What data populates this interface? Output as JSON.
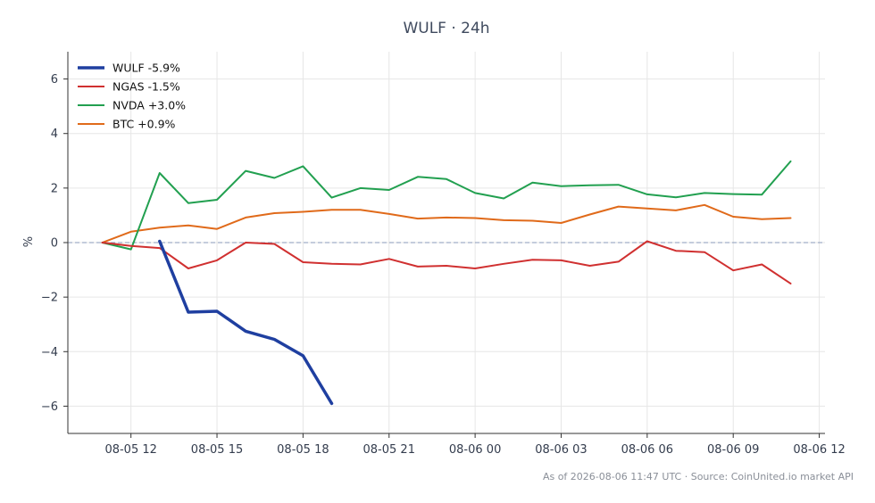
{
  "chart_data": {
    "type": "line",
    "title": "WULF · 24h",
    "xlabel": "",
    "ylabel": "%",
    "x_ticks": [
      "08-05 12",
      "08-05 15",
      "08-05 18",
      "08-05 21",
      "08-06 00",
      "08-06 03",
      "08-06 06",
      "08-06 09",
      "08-06 12"
    ],
    "x_range_hours": [
      -2.2,
      24.2
    ],
    "ylim": [
      -7,
      7
    ],
    "y_ticks": [
      -6,
      -4,
      -2,
      0,
      2,
      4,
      6
    ],
    "y_tick_labels": [
      "−6",
      "−4",
      "−2",
      "0",
      "2",
      "4",
      "6"
    ],
    "grid": true,
    "legend_position": "top-left",
    "zero_line": true,
    "series": [
      {
        "name": "WULF -5.9%",
        "color": "#1f3fa0",
        "width": 3.5,
        "x": [
          1,
          2,
          3,
          4,
          5,
          6,
          7
        ],
        "values": [
          0.05,
          -2.55,
          -2.52,
          -3.25,
          -3.55,
          -4.15,
          -5.9
        ]
      },
      {
        "name": "NGAS -1.5%",
        "color": "#d03030",
        "width": 2,
        "x": [
          -1,
          0,
          1,
          2,
          3,
          4,
          5,
          6,
          7,
          8,
          9,
          10,
          11,
          12,
          13,
          14,
          15,
          16,
          17,
          18,
          19,
          20,
          21,
          22,
          23
        ],
        "values": [
          0,
          -0.12,
          -0.2,
          -0.95,
          -0.65,
          0,
          -0.05,
          -0.72,
          -0.78,
          -0.8,
          -0.6,
          -0.88,
          -0.85,
          -0.95,
          -0.78,
          -0.63,
          -0.65,
          -0.85,
          -0.7,
          0.05,
          -0.3,
          -0.35,
          -1.02,
          -0.8,
          -1.5
        ]
      },
      {
        "name": "NVDA +3.0%",
        "color": "#22a050",
        "width": 2,
        "x": [
          -1,
          0,
          1,
          2,
          3,
          4,
          5,
          6,
          7,
          8,
          9,
          10,
          11,
          12,
          13,
          14,
          15,
          16,
          17,
          18,
          19,
          20,
          21,
          22,
          23
        ],
        "values": [
          0,
          -0.25,
          2.55,
          1.45,
          1.57,
          2.63,
          2.37,
          2.8,
          1.65,
          2.0,
          1.93,
          2.41,
          2.33,
          1.82,
          1.62,
          2.2,
          2.07,
          2.1,
          2.12,
          1.77,
          1.66,
          1.82,
          1.78,
          1.76,
          2.98
        ]
      },
      {
        "name": "BTC +0.9%",
        "color": "#e06a1a",
        "width": 2,
        "x": [
          -1,
          0,
          1,
          2,
          3,
          4,
          5,
          6,
          7,
          8,
          9,
          10,
          11,
          12,
          13,
          14,
          15,
          16,
          17,
          18,
          19,
          20,
          21,
          22,
          23
        ],
        "values": [
          0,
          0.4,
          0.55,
          0.63,
          0.5,
          0.92,
          1.08,
          1.13,
          1.2,
          1.2,
          1.05,
          0.88,
          0.92,
          0.9,
          0.82,
          0.8,
          0.72,
          1.03,
          1.32,
          1.25,
          1.18,
          1.38,
          0.95,
          0.86,
          0.9
        ]
      }
    ]
  },
  "footer": "As of 2026-08-06 11:47 UTC · Source: CoinUnited.io market API"
}
